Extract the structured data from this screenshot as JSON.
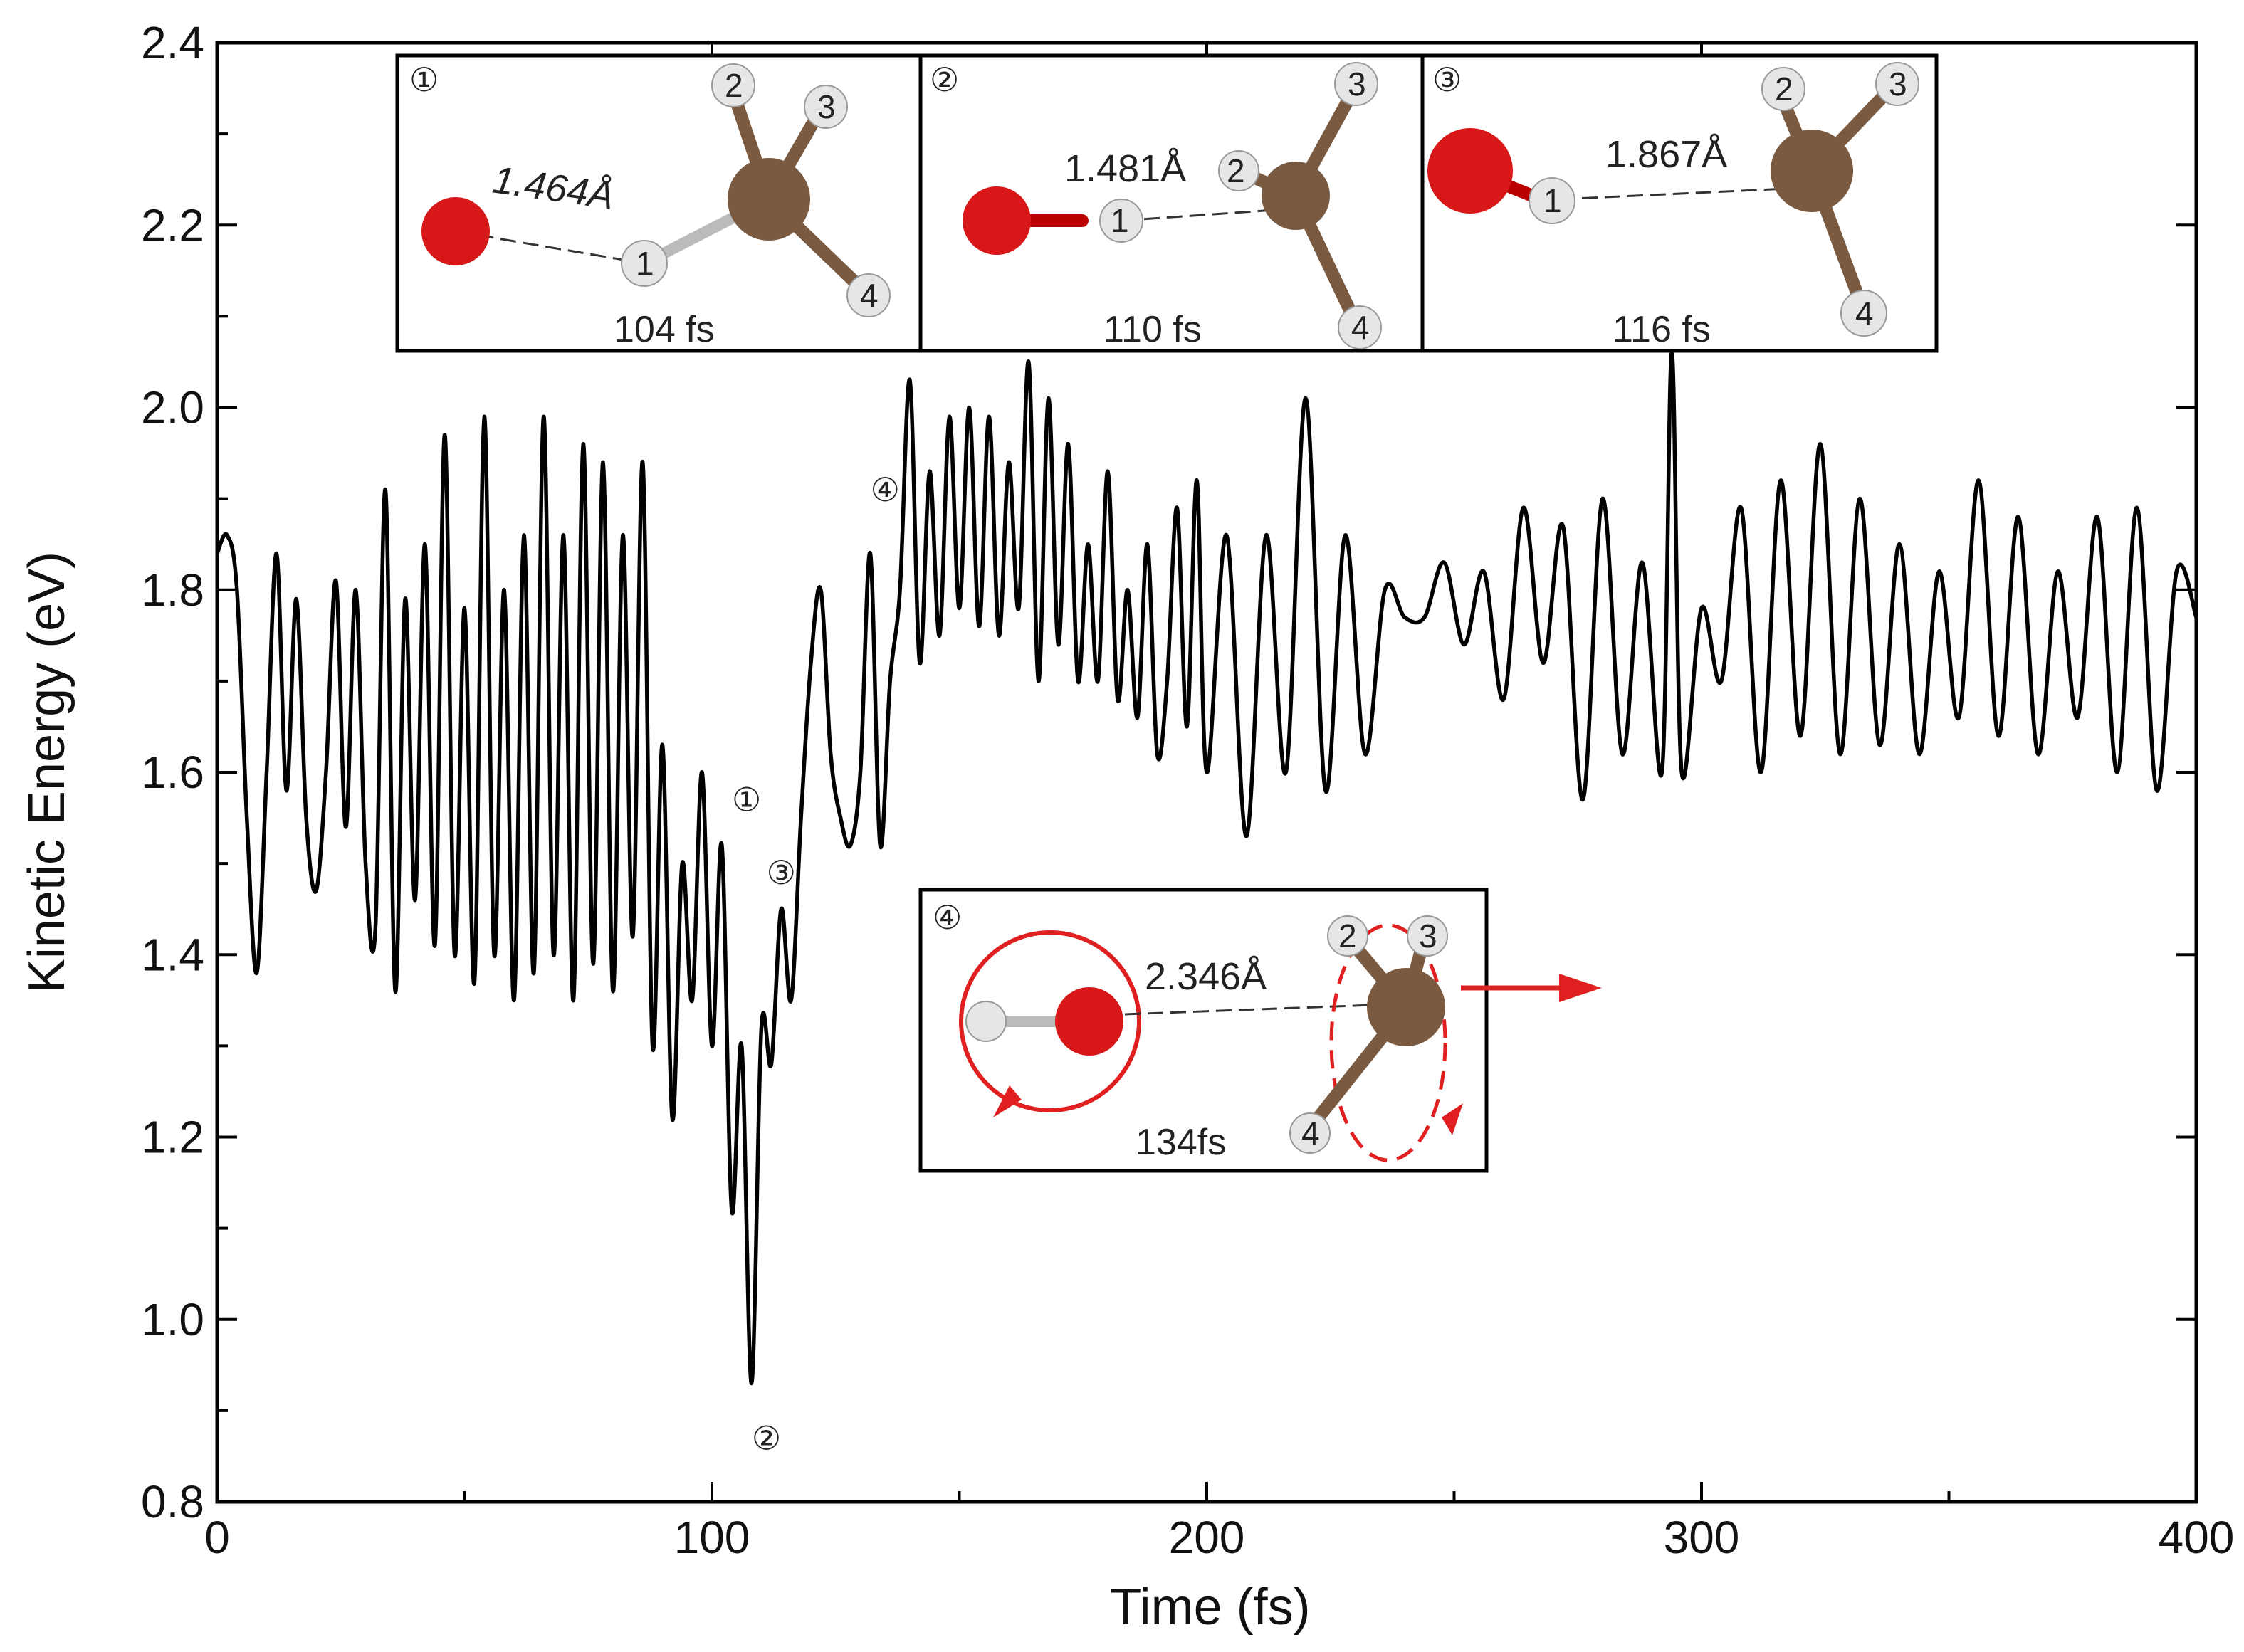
{
  "chart_data": {
    "type": "line",
    "title": "",
    "xlabel": "Time (fs)",
    "ylabel": "Kinetic Energy (eV)",
    "xlim": [
      0,
      400
    ],
    "ylim": [
      0.8,
      2.4
    ],
    "xticks": [
      0,
      100,
      200,
      300,
      400
    ],
    "yticks": [
      0.8,
      1.0,
      1.2,
      1.4,
      1.6,
      1.8,
      2.0,
      2.2,
      2.4
    ],
    "ytick_labels": [
      "0.8",
      "1.0",
      "1.2",
      "1.4",
      "1.6",
      "1.8",
      "2.0",
      "2.2",
      "2.4"
    ],
    "xtick_labels": [
      "0",
      "100",
      "200",
      "300",
      "400"
    ],
    "grid": false,
    "series": [
      {
        "name": "Kinetic Energy",
        "x": [
          0,
          2,
          4,
          6,
          8,
          10,
          12,
          14,
          16,
          18,
          20,
          22,
          24,
          26,
          28,
          30,
          32,
          34,
          36,
          38,
          40,
          42,
          44,
          46,
          48,
          50,
          52,
          54,
          56,
          58,
          60,
          62,
          64,
          66,
          68,
          70,
          72,
          74,
          76,
          78,
          80,
          82,
          84,
          86,
          88,
          90,
          92,
          94,
          96,
          98,
          100,
          102,
          104,
          106,
          108,
          110,
          112,
          114,
          116,
          118,
          120,
          122,
          124,
          126,
          128,
          130,
          132,
          134,
          136,
          138,
          140,
          142,
          144,
          146,
          148,
          150,
          152,
          154,
          156,
          158,
          160,
          162,
          164,
          166,
          168,
          170,
          172,
          174,
          176,
          178,
          180,
          182,
          184,
          186,
          188,
          190,
          192,
          194,
          196,
          198,
          200,
          204,
          208,
          212,
          216,
          220,
          224,
          228,
          232,
          236,
          240,
          244,
          248,
          252,
          256,
          260,
          264,
          268,
          272,
          276,
          280,
          284,
          288,
          292,
          294,
          296,
          300,
          304,
          308,
          312,
          316,
          320,
          324,
          328,
          332,
          336,
          340,
          344,
          348,
          352,
          356,
          360,
          364,
          368,
          372,
          376,
          380,
          384,
          388,
          392,
          396,
          400
        ],
        "values": [
          1.84,
          1.86,
          1.8,
          1.55,
          1.38,
          1.6,
          1.84,
          1.58,
          1.79,
          1.55,
          1.47,
          1.6,
          1.81,
          1.54,
          1.8,
          1.5,
          1.43,
          1.91,
          1.36,
          1.79,
          1.46,
          1.85,
          1.41,
          1.97,
          1.4,
          1.78,
          1.37,
          1.99,
          1.4,
          1.8,
          1.35,
          1.86,
          1.38,
          1.99,
          1.4,
          1.86,
          1.35,
          1.96,
          1.39,
          1.94,
          1.36,
          1.86,
          1.42,
          1.94,
          1.3,
          1.63,
          1.22,
          1.5,
          1.35,
          1.6,
          1.3,
          1.52,
          1.12,
          1.3,
          0.93,
          1.32,
          1.28,
          1.45,
          1.35,
          1.55,
          1.72,
          1.8,
          1.62,
          1.55,
          1.52,
          1.6,
          1.84,
          1.52,
          1.7,
          1.8,
          2.03,
          1.72,
          1.93,
          1.75,
          1.99,
          1.78,
          2.0,
          1.76,
          1.99,
          1.75,
          1.94,
          1.78,
          2.05,
          1.7,
          2.01,
          1.74,
          1.96,
          1.7,
          1.85,
          1.7,
          1.93,
          1.68,
          1.8,
          1.66,
          1.85,
          1.62,
          1.7,
          1.89,
          1.65,
          1.92,
          1.6,
          1.86,
          1.53,
          1.86,
          1.6,
          2.01,
          1.58,
          1.86,
          1.62,
          1.8,
          1.77,
          1.77,
          1.83,
          1.74,
          1.82,
          1.68,
          1.89,
          1.72,
          1.87,
          1.57,
          1.9,
          1.62,
          1.83,
          1.6,
          2.06,
          1.6,
          1.78,
          1.7,
          1.89,
          1.6,
          1.92,
          1.64,
          1.96,
          1.62,
          1.9,
          1.63,
          1.85,
          1.62,
          1.82,
          1.66,
          1.92,
          1.64,
          1.88,
          1.62,
          1.82,
          1.66,
          1.88,
          1.6,
          1.89,
          1.58,
          1.82,
          1.77
        ],
        "color": "#000000"
      }
    ],
    "annotations": [
      {
        "id": "marker-1",
        "label": "①",
        "x": 107,
        "y": 1.57
      },
      {
        "id": "marker-2",
        "label": "②",
        "x": 111,
        "y": 0.87
      },
      {
        "id": "marker-3",
        "label": "③",
        "x": 114,
        "y": 1.49
      },
      {
        "id": "marker-4",
        "label": "④",
        "x": 135,
        "y": 1.91
      }
    ]
  },
  "insets": [
    {
      "id": "inset-1",
      "marker": "①",
      "time": "104 fs",
      "distance": "1.464Å",
      "atoms": [
        "1",
        "2",
        "3",
        "4"
      ]
    },
    {
      "id": "inset-2",
      "marker": "②",
      "time": "110 fs",
      "distance": "1.481Å",
      "atoms": [
        "1",
        "2",
        "3",
        "4"
      ]
    },
    {
      "id": "inset-3",
      "marker": "③",
      "time": "116 fs",
      "distance": "1.867Å",
      "atoms": [
        "1",
        "2",
        "3",
        "4"
      ]
    },
    {
      "id": "inset-4",
      "marker": "④",
      "time": "134fs",
      "distance": "2.346Å",
      "atoms": [
        "2",
        "3",
        "4"
      ]
    }
  ],
  "colors": {
    "oxygen": "#d81818",
    "hydrogen": "#e6e6e6",
    "carbon": "#7a5a40",
    "arrow": "#e02020"
  }
}
